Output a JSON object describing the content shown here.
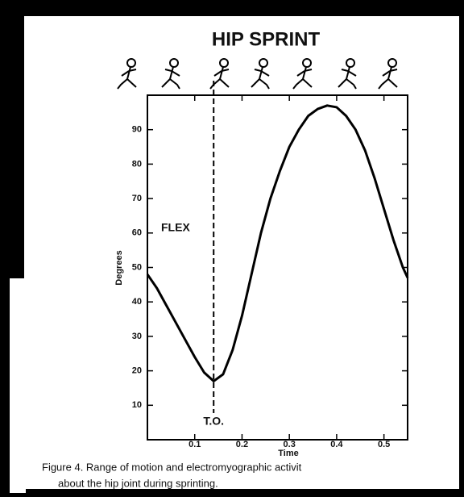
{
  "chart_data": {
    "type": "line",
    "title": "HIP SPRINT",
    "ylabel": "Degrees",
    "xlabel": "Time",
    "x": [
      0,
      0.02,
      0.04,
      0.06,
      0.08,
      0.1,
      0.12,
      0.14,
      0.16,
      0.18,
      0.2,
      0.22,
      0.24,
      0.26,
      0.28,
      0.3,
      0.32,
      0.34,
      0.36,
      0.38,
      0.4,
      0.42,
      0.44,
      0.46,
      0.48,
      0.5,
      0.52,
      0.54,
      0.55
    ],
    "values": [
      48,
      44,
      39,
      34,
      29,
      24,
      19.5,
      17,
      19,
      26,
      36,
      48,
      60,
      70,
      78,
      85,
      90,
      94,
      96,
      97,
      96.5,
      94,
      90,
      84,
      76,
      67,
      58,
      50,
      47
    ],
    "color": "#000000",
    "xlim": [
      0,
      0.55
    ],
    "xticks": [
      0.1,
      0.2,
      0.3,
      0.4,
      0.5
    ],
    "ylim": [
      0,
      100
    ],
    "yticks": [
      10,
      20,
      30,
      40,
      50,
      60,
      70,
      80,
      90
    ],
    "annotations": {
      "flex": "FLEX",
      "toe_off": {
        "label": "T.O.",
        "x": 0.14
      }
    },
    "caption": [
      "Figure 4. Range of motion and electromyographic activit",
      "about the hip joint during sprinting."
    ]
  }
}
